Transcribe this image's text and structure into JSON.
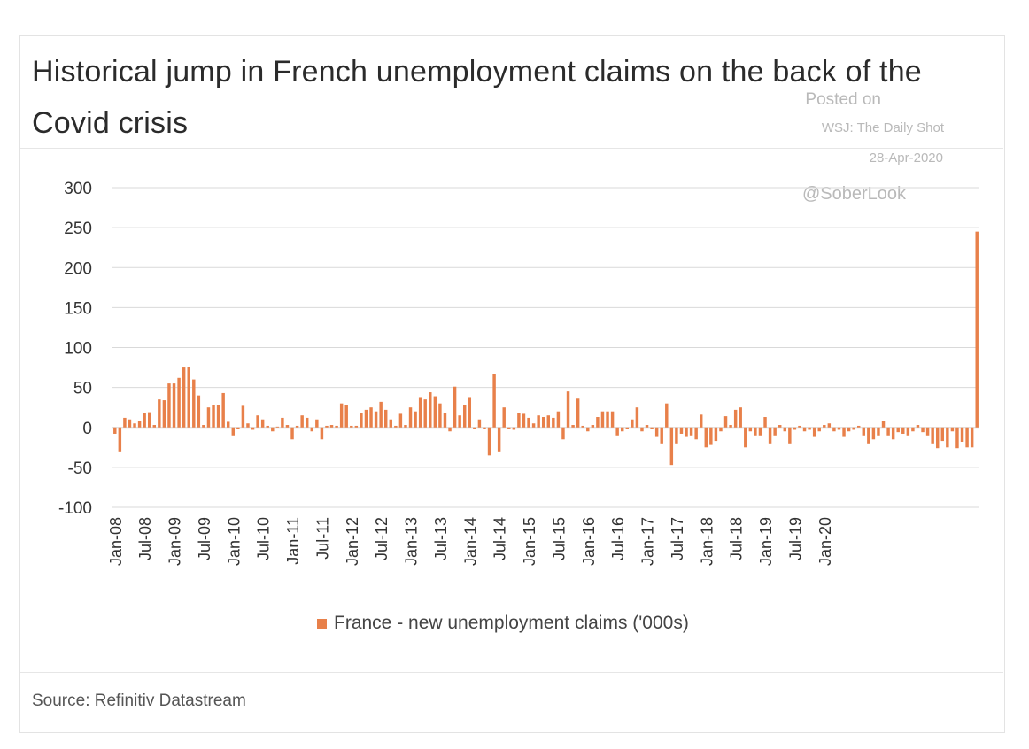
{
  "title": "Historical jump in French unemployment claims on the back of the Covid crisis",
  "watermark": {
    "line1": "Posted on",
    "line2": "WSJ: The Daily Shot",
    "line3": "28-Apr-2020",
    "handle": "@SoberLook"
  },
  "source": "Source: Refinitiv Datastream",
  "colors": {
    "bar": "#e8804a",
    "grid": "#d9d9d9",
    "axis": "#555555"
  },
  "chart_data": {
    "type": "bar",
    "legend_position": "bottom",
    "grid": true,
    "ylim": [
      -100,
      300
    ],
    "yticks": [
      300,
      250,
      200,
      150,
      100,
      50,
      0,
      -50,
      -100
    ],
    "xtick_labels": [
      "Jan-08",
      "Jul-08",
      "Jan-09",
      "Jul-09",
      "Jan-10",
      "Jul-10",
      "Jan-11",
      "Jul-11",
      "Jan-12",
      "Jul-12",
      "Jan-13",
      "Jul-13",
      "Jan-14",
      "Jul-14",
      "Jan-15",
      "Jul-15",
      "Jan-16",
      "Jul-16",
      "Jan-17",
      "Jul-17",
      "Jan-18",
      "Jul-18",
      "Jan-19",
      "Jul-19",
      "Jan-20"
    ],
    "series": [
      {
        "name": "France - new unemployment claims ('000s)",
        "start": "Jan-08",
        "frequency": "monthly",
        "values": [
          -8,
          -30,
          12,
          10,
          5,
          8,
          18,
          19,
          3,
          35,
          34,
          55,
          55,
          62,
          75,
          76,
          60,
          40,
          3,
          25,
          28,
          28,
          43,
          7,
          -10,
          -2,
          27,
          5,
          -3,
          15,
          10,
          2,
          -5,
          1,
          12,
          3,
          -15,
          2,
          15,
          12,
          -5,
          10,
          -15,
          2,
          3,
          2,
          30,
          28,
          2,
          2,
          18,
          22,
          25,
          20,
          32,
          22,
          10,
          2,
          17,
          3,
          25,
          20,
          38,
          35,
          44,
          39,
          30,
          18,
          -5,
          51,
          15,
          28,
          38,
          -2,
          10,
          -2,
          -35,
          67,
          -30,
          25,
          -2,
          -3,
          18,
          17,
          12,
          5,
          15,
          13,
          15,
          12,
          20,
          -15,
          45,
          3,
          36,
          2,
          -5,
          3,
          13,
          20,
          20,
          20,
          -10,
          -5,
          -2,
          10,
          25,
          -5,
          3,
          -2,
          -12,
          -20,
          30,
          -47,
          -20,
          -8,
          -12,
          -10,
          -15,
          16,
          -25,
          -22,
          -17,
          -5,
          14,
          3,
          22,
          25,
          -25,
          -5,
          -10,
          -10,
          13,
          -20,
          -10,
          3,
          -5,
          -20,
          -3,
          2,
          -5,
          -3,
          -12,
          -5,
          3,
          5,
          -5,
          -3,
          -12,
          -5,
          -3,
          2,
          -10,
          -20,
          -15,
          -10,
          8,
          -10,
          -15,
          -6,
          -8,
          -10,
          -5,
          3,
          -6,
          -10,
          -20,
          -26,
          -17,
          -25,
          -5,
          -26,
          -18,
          -25,
          -25,
          245
        ]
      }
    ]
  }
}
